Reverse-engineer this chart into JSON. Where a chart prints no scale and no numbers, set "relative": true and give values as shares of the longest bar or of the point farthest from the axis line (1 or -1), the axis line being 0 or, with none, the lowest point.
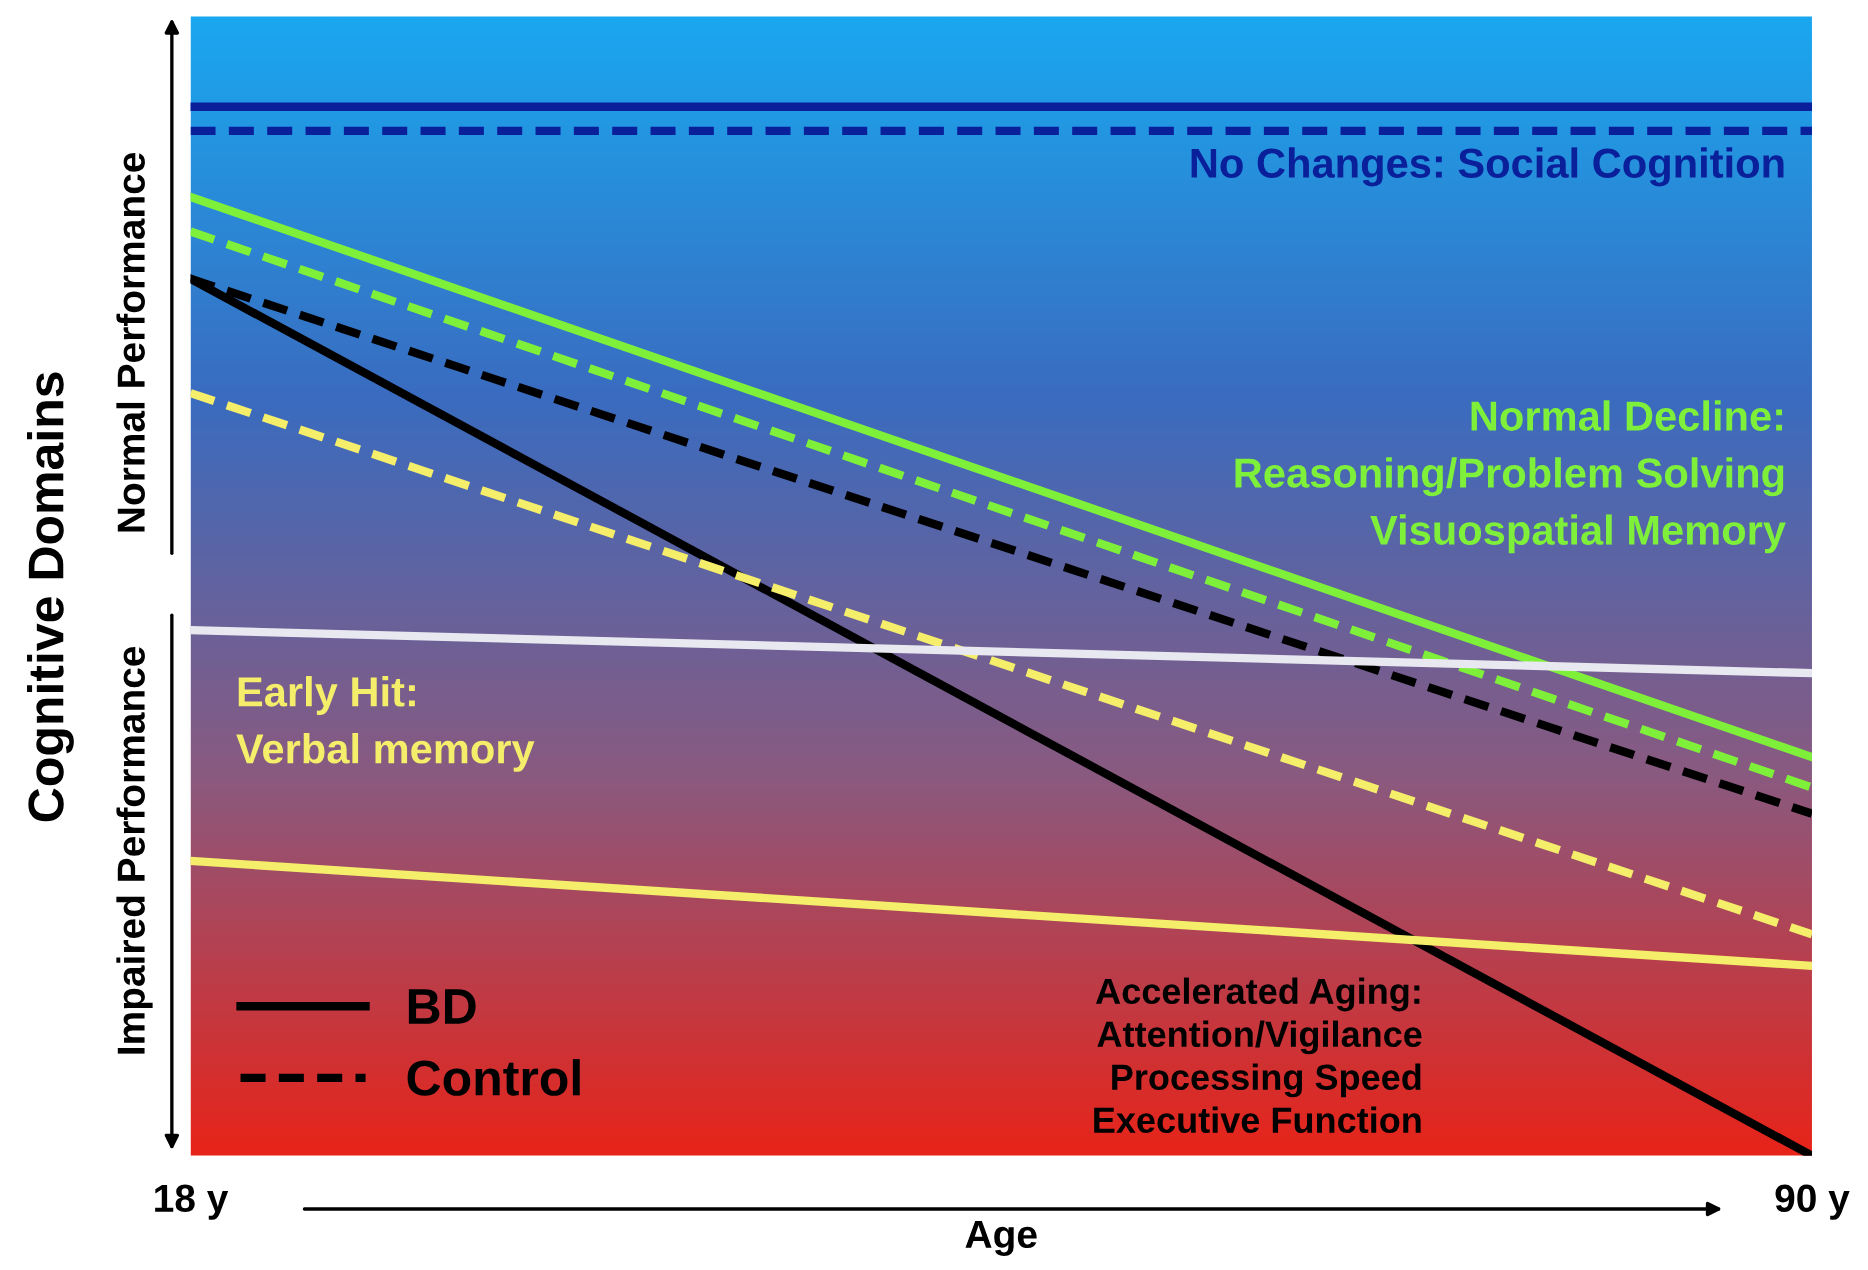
{
  "chart_data": {
    "type": "line",
    "relative": true,
    "xlabel": "Age",
    "ylabel": "Cognitive Domains",
    "xlim": [
      18,
      90
    ],
    "xticks": [
      {
        "value": 18,
        "label": "18 y"
      },
      {
        "value": 90,
        "label": "90 y"
      }
    ],
    "x": [
      18,
      90
    ],
    "series": [
      {
        "color": "#0a1f9a",
        "values": [
          1.0,
          1.0
        ],
        "line_style": "solid"
      },
      {
        "color": "#0a1f9a",
        "values": [
          0.977,
          0.977
        ],
        "line_style": "dashed"
      },
      {
        "color": "#7ef03a",
        "values": [
          0.914,
          0.38
        ],
        "line_style": "solid"
      },
      {
        "color": "#7ef03a",
        "values": [
          0.881,
          0.351
        ],
        "line_style": "dashed"
      },
      {
        "name": "BD",
        "color": "#000000",
        "values": [
          0.836,
          0.0
        ],
        "line_style": "solid"
      },
      {
        "name": "Control",
        "color": "#000000",
        "values": [
          0.836,
          0.326
        ],
        "line_style": "dashed"
      },
      {
        "color": "#f5ee6a",
        "values": [
          0.727,
          0.211
        ],
        "line_style": "dashed"
      },
      {
        "color": "#f5ee6a",
        "values": [
          0.281,
          0.181
        ],
        "line_style": "solid"
      },
      {
        "color": "#e8e8f0",
        "values": [
          0.501,
          0.46
        ],
        "line_style": "solid"
      }
    ],
    "annotations": [
      "No Changes: Social Cognition",
      "Normal Decline:\nReasoning/Problem Solving\nVisuospatial Memory",
      "Early Hit:\nVerbal memory",
      "Accelerated Aging:\nAttention/Vigilance\nProcessing Speed\nExecutive Function",
      "Normal Performance",
      "Impaired Performance"
    ],
    "legend": "bottom left",
    "grid": false
  }
}
